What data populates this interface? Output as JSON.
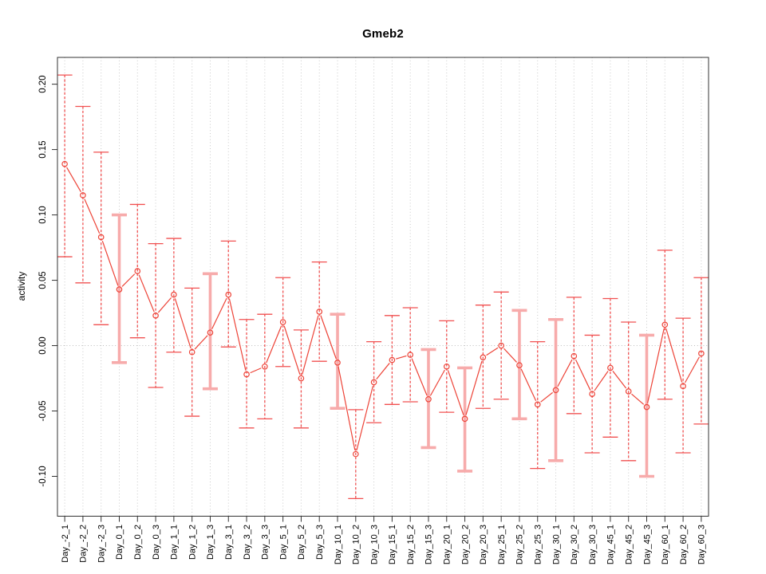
{
  "title": "Gmeb2",
  "chart_data": {
    "type": "line",
    "subtype": "points-with-error-bars",
    "title": "Gmeb2",
    "xlabel": "",
    "ylabel": "activity",
    "ylim": [
      -0.1305,
      0.2205
    ],
    "yticks": [
      0.2,
      0.15,
      0.1,
      0.05,
      0.0,
      -0.05,
      -0.1
    ],
    "ytick_labels": [
      "0.20",
      "0.15",
      "0.10",
      "0.05",
      "0.00",
      "-0.05",
      "-0.10"
    ],
    "grid": {
      "vertical_dotted": true,
      "zero_line_dotted": true,
      "horizontal": false
    },
    "legend_position": "none",
    "categories": [
      "Day_-2_1",
      "Day_-2_2",
      "Day_-2_3",
      "Day_0_1",
      "Day_0_2",
      "Day_0_3",
      "Day_1_1",
      "Day_1_2",
      "Day_1_3",
      "Day_3_1",
      "Day_3_2",
      "Day_3_3",
      "Day_5_1",
      "Day_5_2",
      "Day_5_3",
      "Day_10_1",
      "Day_10_2",
      "Day_10_3",
      "Day_15_1",
      "Day_15_2",
      "Day_15_3",
      "Day_20_1",
      "Day_20_2",
      "Day_20_3",
      "Day_25_1",
      "Day_25_2",
      "Day_25_3",
      "Day_30_1",
      "Day_30_2",
      "Day_30_3",
      "Day_45_1",
      "Day_45_2",
      "Day_45_3",
      "Day_60_1",
      "Day_60_2",
      "Day_60_3"
    ],
    "series": [
      {
        "name": "activity",
        "means": [
          0.139,
          0.115,
          0.083,
          0.043,
          0.057,
          0.023,
          0.039,
          -0.005,
          0.01,
          0.039,
          -0.022,
          -0.016,
          0.018,
          -0.025,
          0.026,
          -0.013,
          -0.083,
          -0.028,
          -0.011,
          -0.007,
          -0.041,
          -0.016,
          -0.056,
          -0.009,
          0.0,
          -0.015,
          -0.045,
          -0.034,
          -0.008,
          -0.037,
          -0.017,
          -0.035,
          -0.047,
          0.016,
          -0.031,
          -0.006
        ],
        "lower": [
          0.068,
          0.048,
          0.016,
          -0.013,
          0.006,
          -0.032,
          -0.005,
          -0.054,
          -0.033,
          -0.001,
          -0.063,
          -0.056,
          -0.016,
          -0.063,
          -0.012,
          -0.048,
          -0.117,
          -0.059,
          -0.045,
          -0.043,
          -0.078,
          -0.051,
          -0.096,
          -0.048,
          -0.041,
          -0.056,
          -0.094,
          -0.088,
          -0.052,
          -0.082,
          -0.07,
          -0.088,
          -0.1,
          -0.041,
          -0.082,
          -0.06
        ],
        "upper": [
          0.207,
          0.183,
          0.148,
          0.1,
          0.108,
          0.078,
          0.082,
          0.044,
          0.055,
          0.08,
          0.02,
          0.024,
          0.052,
          0.012,
          0.064,
          0.024,
          -0.049,
          0.003,
          0.023,
          0.029,
          -0.003,
          0.019,
          -0.017,
          0.031,
          0.041,
          0.027,
          0.003,
          0.02,
          0.037,
          0.008,
          0.036,
          0.018,
          0.008,
          0.073,
          0.021,
          0.052
        ],
        "wide_bar_indices": [
          3,
          8,
          15,
          20,
          22,
          25,
          27,
          32
        ]
      }
    ],
    "colors": {
      "point": "#ed4337",
      "line": "#ed4337",
      "error_bar": "#f15050",
      "error_bar_wide": "#f7abab",
      "grid": "#c9c9c9",
      "zero_line": "#bdbdbd",
      "axis": "#333333",
      "text": "#000000"
    }
  }
}
